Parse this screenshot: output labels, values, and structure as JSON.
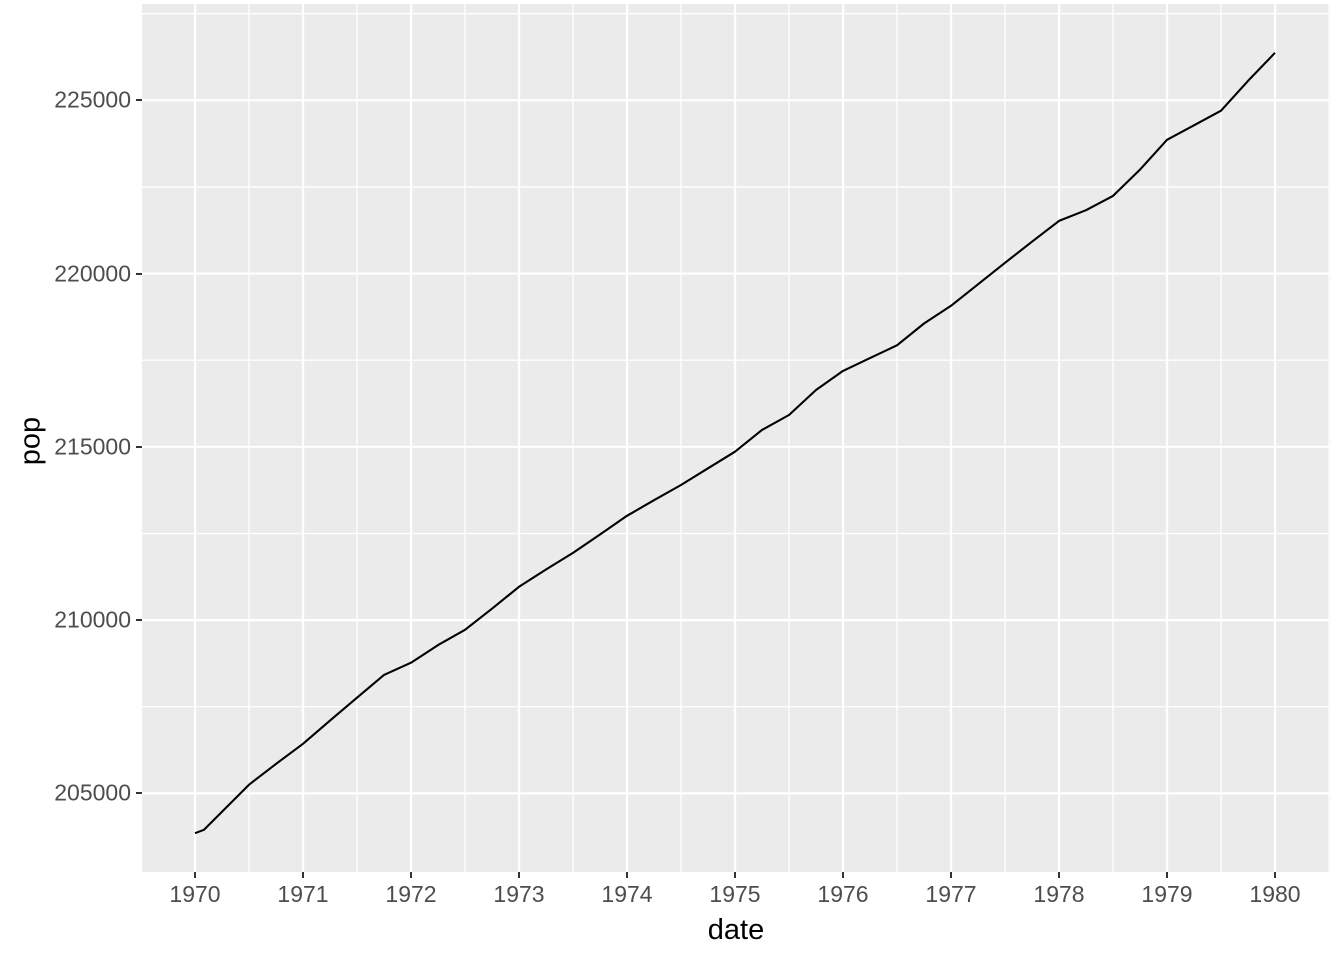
{
  "figure": {
    "background": "#FFFFFF"
  },
  "chart_data": {
    "type": "line",
    "title": "",
    "xlabel": "date",
    "ylabel": "pop",
    "grid": "on",
    "legend": "none",
    "x_domain": [
      1969.509,
      1980.509
    ],
    "y_domain": [
      202731,
      227779
    ],
    "x_ticks": [
      1970,
      1971,
      1972,
      1973,
      1974,
      1975,
      1976,
      1977,
      1978,
      1979,
      1980
    ],
    "y_ticks": [
      205000,
      210000,
      215000,
      220000,
      225000
    ],
    "x_minor_ticks": [
      1969.5,
      1970.5,
      1971.5,
      1972.5,
      1973.5,
      1974.5,
      1975.5,
      1976.5,
      1977.5,
      1978.5,
      1979.5,
      1980.5
    ],
    "y_minor_ticks": [
      207500,
      212500,
      217500,
      222500,
      227500
    ],
    "series": [
      {
        "name": "pop",
        "color": "#000000",
        "x": [
          1970.0,
          1970.083,
          1970.25,
          1970.5,
          1970.75,
          1971.0,
          1971.25,
          1971.5,
          1971.75,
          1972.0,
          1972.25,
          1972.5,
          1972.75,
          1973.0,
          1973.25,
          1973.5,
          1973.75,
          1974.0,
          1974.25,
          1974.5,
          1974.75,
          1975.0,
          1975.25,
          1975.5,
          1975.75,
          1976.0,
          1976.25,
          1976.5,
          1976.75,
          1977.0,
          1977.25,
          1977.5,
          1977.75,
          1978.0,
          1978.25,
          1978.5,
          1978.75,
          1979.0,
          1979.25,
          1979.5,
          1979.75,
          1980.0
        ],
        "y": [
          203850,
          203950,
          204470,
          205250,
          205850,
          206430,
          207100,
          207760,
          208420,
          208770,
          209280,
          209720,
          210330,
          210960,
          211460,
          211940,
          212470,
          213010,
          213460,
          213900,
          214380,
          214860,
          215490,
          215920,
          216640,
          217190,
          217560,
          217930,
          218560,
          219070,
          219690,
          220310,
          220920,
          221520,
          221830,
          222240,
          223000,
          223860,
          224280,
          224700,
          225560,
          226370
        ]
      }
    ],
    "theme": {
      "panel_bg": "#EBEBEB",
      "grid_color": "#FFFFFF",
      "line_color": "#000000",
      "tick_label_color": "#4D4D4D",
      "axis_title_color": "#000000",
      "tick_mark_color": "#333333"
    }
  }
}
